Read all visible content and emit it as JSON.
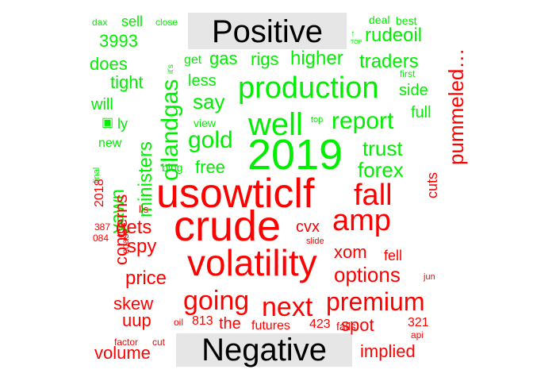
{
  "positive_title": "Positive",
  "negative_title": "Negative",
  "colors": {
    "positive": "#00ee00",
    "negative": "#ff0000"
  },
  "words": [
    {
      "text": "2019",
      "group": "positive"
    },
    {
      "text": "production",
      "group": "positive"
    },
    {
      "text": "well",
      "group": "positive"
    },
    {
      "text": "oilandgas",
      "group": "positive"
    },
    {
      "text": "report",
      "group": "positive"
    },
    {
      "text": "ministers",
      "group": "positive"
    },
    {
      "text": "gold",
      "group": "positive"
    },
    {
      "text": "trust",
      "group": "positive"
    },
    {
      "text": "forex",
      "group": "positive"
    },
    {
      "text": "say",
      "group": "positive"
    },
    {
      "text": "higher",
      "group": "positive"
    },
    {
      "text": "rudeoil",
      "group": "positive"
    },
    {
      "text": "traders",
      "group": "positive"
    },
    {
      "text": "rigs",
      "group": "positive"
    },
    {
      "text": "gas",
      "group": "positive"
    },
    {
      "text": "yawn",
      "group": "positive"
    },
    {
      "text": "less",
      "group": "positive"
    },
    {
      "text": "free",
      "group": "positive"
    },
    {
      "text": "tight",
      "group": "positive"
    },
    {
      "text": "does",
      "group": "positive"
    },
    {
      "text": "3993",
      "group": "positive"
    },
    {
      "text": "side",
      "group": "positive"
    },
    {
      "text": "full",
      "group": "positive"
    },
    {
      "text": "will",
      "group": "positive"
    },
    {
      "text": "sell",
      "group": "positive"
    },
    {
      "text": "new",
      "group": "positive"
    },
    {
      "text": "ly",
      "group": "positive"
    },
    {
      "text": "get",
      "group": "positive"
    },
    {
      "text": "view",
      "group": "positive"
    },
    {
      "text": "blog",
      "group": "positive"
    },
    {
      "text": "deal",
      "group": "positive"
    },
    {
      "text": "best",
      "group": "positive"
    },
    {
      "text": "first",
      "group": "positive"
    },
    {
      "text": "dax",
      "group": "positive"
    },
    {
      "text": "close",
      "group": "positive"
    },
    {
      "text": "it's",
      "group": "positive"
    },
    {
      "text": "top",
      "group": "positive"
    },
    {
      "text": "final",
      "group": "positive"
    },
    {
      "text": "TOP",
      "group": "positive"
    },
    {
      "text": "crude",
      "group": "negative"
    },
    {
      "text": "usowticlf",
      "group": "negative"
    },
    {
      "text": "volatility",
      "group": "negative"
    },
    {
      "text": "amp",
      "group": "negative"
    },
    {
      "text": "fall",
      "group": "negative"
    },
    {
      "text": "going",
      "group": "negative"
    },
    {
      "text": "next",
      "group": "negative"
    },
    {
      "text": "premium",
      "group": "negative"
    },
    {
      "text": "pummeled…",
      "group": "negative"
    },
    {
      "text": "options",
      "group": "negative"
    },
    {
      "text": "concerns",
      "group": "negative"
    },
    {
      "text": "gets",
      "group": "negative"
    },
    {
      "text": "spy",
      "group": "negative"
    },
    {
      "text": "price",
      "group": "negative"
    },
    {
      "text": "skew",
      "group": "negative"
    },
    {
      "text": "uup",
      "group": "negative"
    },
    {
      "text": "volume",
      "group": "negative"
    },
    {
      "text": "implied",
      "group": "negative"
    },
    {
      "text": "spot",
      "group": "negative"
    },
    {
      "text": "xom",
      "group": "negative"
    },
    {
      "text": "fell",
      "group": "negative"
    },
    {
      "text": "cuts",
      "group": "negative"
    },
    {
      "text": "cvx",
      "group": "negative"
    },
    {
      "text": "the",
      "group": "negative"
    },
    {
      "text": "futures",
      "group": "negative"
    },
    {
      "text": "813",
      "group": "negative"
    },
    {
      "text": "423",
      "group": "negative"
    },
    {
      "text": "falls",
      "group": "negative"
    },
    {
      "text": "321",
      "group": "negative"
    },
    {
      "text": "api",
      "group": "negative"
    },
    {
      "text": "jun",
      "group": "negative"
    },
    {
      "text": "2018",
      "group": "negative"
    },
    {
      "text": "lls",
      "group": "negative"
    },
    {
      "text": "387",
      "group": "negative"
    },
    {
      "text": "084",
      "group": "negative"
    },
    {
      "text": "coast",
      "group": "negative"
    },
    {
      "text": "slide",
      "group": "negative"
    },
    {
      "text": "oil",
      "group": "negative"
    },
    {
      "text": "factor",
      "group": "negative"
    },
    {
      "text": "cut",
      "group": "negative"
    }
  ]
}
